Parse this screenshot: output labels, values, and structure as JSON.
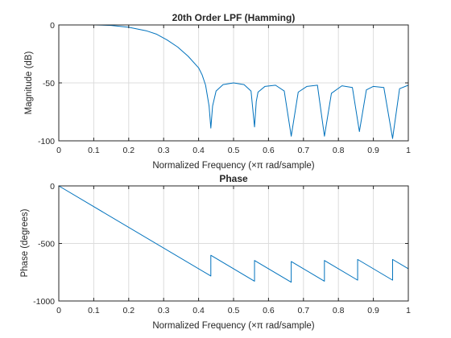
{
  "chart_data": [
    {
      "type": "line",
      "title": "20th Order LPF (Hamming)",
      "xlabel": "Normalized Frequency  (×π rad/sample)",
      "ylabel": "Magnitude (dB)",
      "xlim": [
        0,
        1
      ],
      "ylim": [
        -100,
        0
      ],
      "grid": true,
      "x_ticks": [
        "0",
        "0.1",
        "0.2",
        "0.3",
        "0.4",
        "0.5",
        "0.6",
        "0.7",
        "0.8",
        "0.9",
        "1"
      ],
      "y_ticks": [
        "0",
        "-50",
        "-100"
      ],
      "color": "#0072BD",
      "series": [
        {
          "x": [
            0,
            0.05,
            0.1,
            0.15,
            0.2,
            0.25,
            0.28,
            0.31,
            0.34,
            0.37,
            0.4,
            0.41,
            0.42,
            0.43,
            0.435,
            0.44,
            0.45,
            0.47,
            0.5,
            0.53,
            0.55,
            0.56,
            0.565,
            0.57,
            0.59,
            0.62,
            0.645,
            0.665,
            0.685,
            0.71,
            0.74,
            0.76,
            0.78,
            0.81,
            0.84,
            0.86,
            0.88,
            0.9,
            0.93,
            0.955,
            0.975,
            1.0
          ],
          "y": [
            0,
            0,
            0,
            -0.4,
            -2,
            -5,
            -8,
            -13,
            -19,
            -27,
            -37,
            -43,
            -52,
            -70,
            -89,
            -70,
            -57,
            -51.5,
            -50,
            -51.5,
            -57,
            -88,
            -66,
            -58,
            -53,
            -52,
            -57,
            -96,
            -58,
            -53,
            -52,
            -96,
            -59,
            -52.5,
            -54,
            -92,
            -56,
            -53,
            -54,
            -98,
            -55,
            -52
          ]
        }
      ]
    },
    {
      "type": "line",
      "title": "Phase",
      "xlabel": "Normalized Frequency  (×π rad/sample)",
      "ylabel": "Phase (degrees)",
      "xlim": [
        0,
        1
      ],
      "ylim": [
        -1000,
        0
      ],
      "grid": true,
      "x_ticks": [
        "0",
        "0.1",
        "0.2",
        "0.3",
        "0.4",
        "0.5",
        "0.6",
        "0.7",
        "0.8",
        "0.9",
        "1"
      ],
      "y_ticks": [
        "0",
        "-500",
        "-1000"
      ],
      "color": "#0072BD",
      "series": [
        {
          "x": [
            0,
            0.435,
            0.435,
            0.56,
            0.56,
            0.665,
            0.665,
            0.76,
            0.76,
            0.855,
            0.855,
            0.955,
            0.955,
            1.0
          ],
          "y": [
            0,
            -783,
            -603,
            -828,
            -648,
            -837,
            -657,
            -828,
            -648,
            -819,
            -639,
            -819,
            -639,
            -720
          ]
        }
      ]
    }
  ]
}
